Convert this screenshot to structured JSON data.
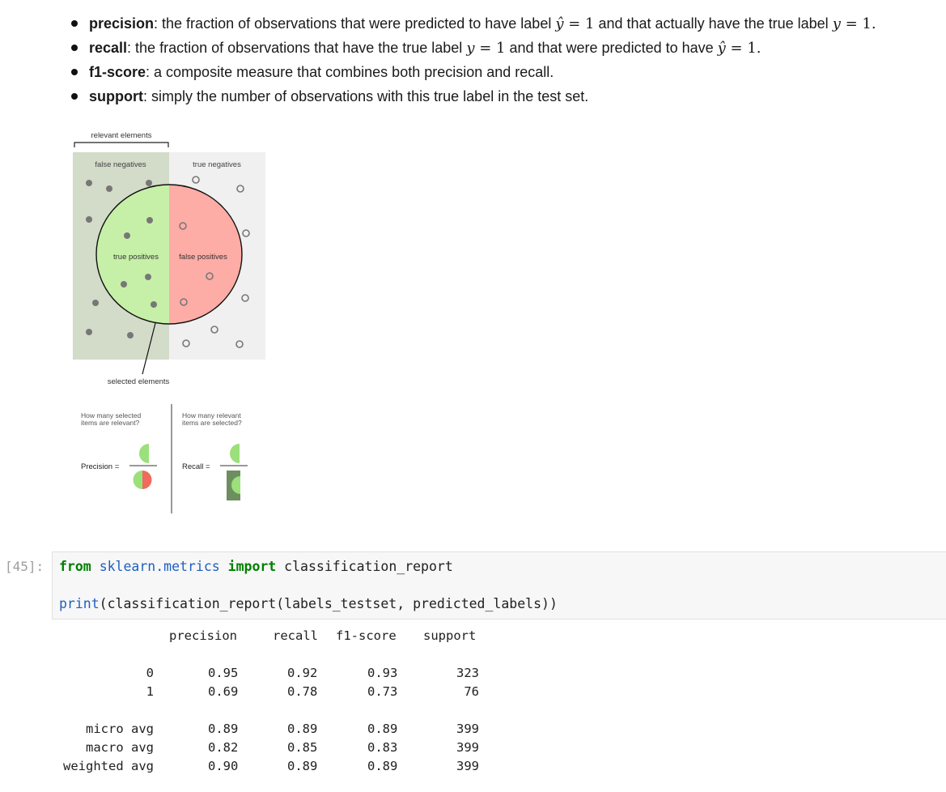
{
  "bullets": [
    {
      "term": "precision",
      "text_a": ": the fraction of observations that were predicted to have label ",
      "m1": "ŷ",
      "m1n": " = 1",
      "text_b": " and that actually have the true label ",
      "m2": "y",
      "m2n": " = 1."
    },
    {
      "term": "recall",
      "text_a": ": the fraction of observations that have the true label ",
      "m1": "y",
      "m1n": " = 1",
      "text_b": " and that were predicted to have ",
      "m2": "ŷ",
      "m2n": " = 1."
    },
    {
      "term": "f1-score",
      "text_a": ": a composite measure that combines both precision and recall."
    },
    {
      "term": "support",
      "text_a": ": simply the number of observations with this true label in the test set."
    }
  ],
  "figure": {
    "relevant_elements": "relevant elements",
    "false_negatives": "false negatives",
    "true_negatives": "true negatives",
    "true_positives": "true positives",
    "false_positives": "false positives",
    "selected_elements": "selected elements",
    "precision_question": [
      "How many selected",
      "items are relevant?"
    ],
    "recall_question": [
      "How many relevant",
      "items are selected?"
    ],
    "precision_label": "Precision =",
    "recall_label": "Recall =",
    "colors": {
      "fn_bg": "#d3dbc9",
      "tn_bg": "#f0f0f0",
      "tp": "#c6f0a8",
      "fp": "#fdaca6",
      "dark": "#6d8f5f"
    }
  },
  "cell": {
    "prompt": "[45]:",
    "line1": {
      "from": "from",
      "module": "sklearn.metrics",
      "import": "import",
      "name": " classification_report"
    },
    "line2": {
      "print": "print",
      "rest": "(classification_report(labels_testset, predicted_labels))"
    }
  },
  "report": {
    "headers": [
      "precision",
      "recall",
      "f1-score",
      "support"
    ],
    "rows": [
      {
        "label": "0",
        "values": [
          "0.95",
          "0.92",
          "0.93",
          "323"
        ]
      },
      {
        "label": "1",
        "values": [
          "0.69",
          "0.78",
          "0.73",
          "76"
        ]
      },
      {
        "label": "micro avg",
        "values": [
          "0.89",
          "0.89",
          "0.89",
          "399"
        ]
      },
      {
        "label": "macro avg",
        "values": [
          "0.82",
          "0.85",
          "0.83",
          "399"
        ]
      },
      {
        "label": "weighted avg",
        "values": [
          "0.90",
          "0.89",
          "0.89",
          "399"
        ]
      }
    ]
  }
}
